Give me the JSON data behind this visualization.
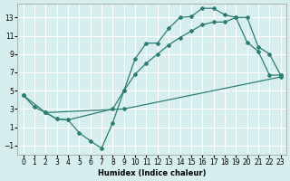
{
  "xlabel": "Humidex (Indice chaleur)",
  "bg_color": "#d6eeee",
  "line_color": "#2d7d72",
  "grid_color": "#ffffff",
  "xlim": [
    -0.5,
    23.5
  ],
  "ylim": [
    -2.0,
    14.5
  ],
  "xticks": [
    0,
    1,
    2,
    3,
    4,
    5,
    6,
    7,
    8,
    9,
    10,
    11,
    12,
    13,
    14,
    15,
    16,
    17,
    18,
    19,
    20,
    21,
    22,
    23
  ],
  "yticks": [
    -1,
    1,
    3,
    5,
    7,
    9,
    11,
    13
  ],
  "line1": {
    "x": [
      0,
      1,
      2,
      3,
      4,
      5,
      6,
      7,
      8,
      9,
      10,
      11,
      12,
      13,
      14,
      15,
      16,
      17,
      18,
      19,
      20,
      21,
      22,
      23
    ],
    "y": [
      4.5,
      3.2,
      2.6,
      1.9,
      1.8,
      0.4,
      -0.5,
      -1.3,
      1.5,
      5.0,
      8.5,
      10.2,
      10.2,
      11.8,
      13.0,
      13.1,
      14.0,
      14.0,
      13.3,
      13.0,
      10.3,
      9.3,
      6.7,
      6.7
    ]
  },
  "line2": {
    "x": [
      0,
      2,
      9,
      23
    ],
    "y": [
      4.5,
      2.6,
      3.0,
      6.5
    ]
  },
  "line3": {
    "x": [
      2,
      3,
      4,
      8,
      9,
      10,
      11,
      12,
      13,
      14,
      15,
      16,
      17,
      18,
      19,
      20,
      21,
      22,
      23
    ],
    "y": [
      2.6,
      1.9,
      1.8,
      3.0,
      5.0,
      6.8,
      8.0,
      9.0,
      10.0,
      10.8,
      11.5,
      12.2,
      12.5,
      12.5,
      13.0,
      13.0,
      9.8,
      9.0,
      6.7
    ]
  }
}
